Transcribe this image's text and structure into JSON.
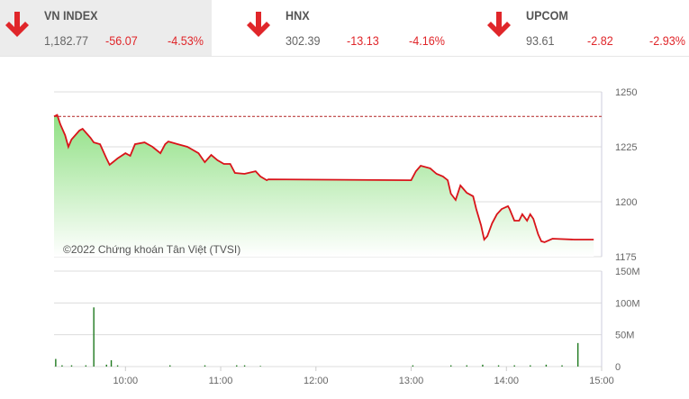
{
  "indices": [
    {
      "name": "VN INDEX",
      "value": "1,182.77",
      "change": "-56.07",
      "percent": "-4.53%",
      "direction": "down",
      "selected": true
    },
    {
      "name": "HNX",
      "value": "302.39",
      "change": "-13.13",
      "percent": "-4.16%",
      "direction": "down",
      "selected": false
    },
    {
      "name": "UPCOM",
      "value": "93.61",
      "change": "-2.82",
      "percent": "-2.93%",
      "direction": "down",
      "selected": false
    }
  ],
  "colors": {
    "down": "#e0262a",
    "line": "#d9141a",
    "fill": "#9be58f",
    "volume": "#1f7a1f",
    "reference": "#b22222"
  },
  "chart_data": [
    {
      "type": "area",
      "watermark": "©2022 Chứng khoán Tân Việt (TVSI)",
      "ylim": [
        1175,
        1250
      ],
      "yticks": [
        "1250",
        "1225",
        "1200",
        "1175"
      ],
      "reference": 1238.84,
      "xlim": [
        "09:15",
        "15:00"
      ],
      "x": [
        "09:15",
        "09:17",
        "09:19",
        "09:22",
        "09:24",
        "09:26",
        "09:31",
        "09:33",
        "09:38",
        "09:40",
        "09:44",
        "09:48",
        "09:50",
        "09:55",
        "10:00",
        "10:03",
        "10:06",
        "10:12",
        "10:17",
        "10:22",
        "10:25",
        "10:27",
        "10:33",
        "10:39",
        "10:41",
        "10:46",
        "10:50",
        "10:54",
        "10:58",
        "11:02",
        "11:06",
        "11:09",
        "11:15",
        "11:22",
        "11:25",
        "11:29",
        "11:30",
        "13:00",
        "13:03",
        "13:06",
        "13:12",
        "13:16",
        "13:20",
        "13:23",
        "13:25",
        "13:28",
        "13:31",
        "13:35",
        "13:39",
        "13:41",
        "13:44",
        "13:46",
        "13:48",
        "13:51",
        "13:54",
        "13:57",
        "14:01",
        "14:02",
        "14:05",
        "14:08",
        "14:10",
        "14:13",
        "14:15",
        "14:17",
        "14:20",
        "14:22",
        "14:24",
        "14:29",
        "14:43",
        "14:55"
      ],
      "y": [
        1238.8,
        1239.5,
        1235.2,
        1230.3,
        1225.0,
        1228.3,
        1232.4,
        1233.2,
        1229.1,
        1227.0,
        1226.2,
        1219.7,
        1216.8,
        1219.7,
        1222.1,
        1220.9,
        1226.2,
        1227.0,
        1225.0,
        1222.1,
        1226.2,
        1227.4,
        1226.2,
        1225.0,
        1224.2,
        1222.1,
        1218.0,
        1221.3,
        1218.9,
        1217.2,
        1217.2,
        1213.1,
        1212.7,
        1213.9,
        1211.5,
        1209.8,
        1210.2,
        1209.8,
        1213.9,
        1216.4,
        1215.2,
        1212.7,
        1211.5,
        1209.8,
        1203.7,
        1200.8,
        1207.4,
        1204.1,
        1202.5,
        1196.7,
        1189.3,
        1182.8,
        1184.4,
        1190.2,
        1194.3,
        1196.7,
        1198.0,
        1196.7,
        1191.4,
        1191.4,
        1194.3,
        1191.4,
        1194.3,
        1192.2,
        1185.2,
        1182.0,
        1181.6,
        1183.2,
        1182.8,
        1182.77
      ]
    },
    {
      "type": "bar",
      "ylim": [
        0,
        150
      ],
      "yticks": [
        "150M",
        "100M",
        "50M",
        "0"
      ],
      "xticks": [
        "10:00",
        "11:00",
        "12:00",
        "13:00",
        "14:00",
        "15:00"
      ],
      "x": [
        "09:16",
        "09:20",
        "09:26",
        "09:35",
        "09:40",
        "09:48",
        "09:51",
        "09:55",
        "10:28",
        "10:50",
        "11:10",
        "11:15",
        "11:25",
        "13:01",
        "13:25",
        "13:35",
        "13:45",
        "13:55",
        "14:05",
        "14:15",
        "14:25",
        "14:35",
        "14:45"
      ],
      "values": [
        12,
        2,
        2,
        2,
        93,
        3,
        10,
        2,
        2,
        2,
        2,
        2,
        1,
        2,
        2,
        2,
        3,
        2,
        2,
        2,
        3,
        2,
        37
      ]
    }
  ]
}
